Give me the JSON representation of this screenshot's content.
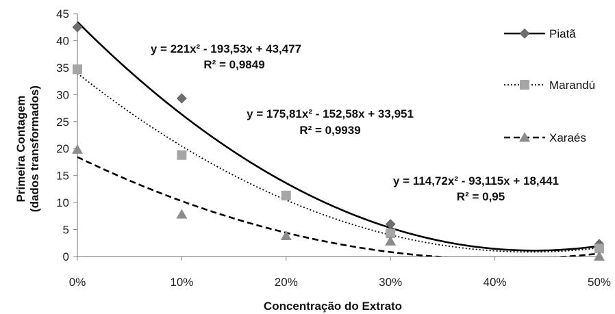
{
  "chart_data": {
    "type": "scatter",
    "xlabel": "Concentração do Extrato",
    "ylabel_lines": [
      "Primeira Contagem",
      "(dados transformados)"
    ],
    "x_ticks": [
      0,
      0.1,
      0.2,
      0.3,
      0.4,
      0.5
    ],
    "x_tick_labels": [
      "0%",
      "10%",
      "20%",
      "30%",
      "40%",
      "50%"
    ],
    "xlim": [
      0,
      0.5
    ],
    "y_ticks": [
      0,
      5,
      10,
      15,
      20,
      25,
      30,
      35,
      40,
      45
    ],
    "y_tick_labels": [
      "0",
      "5",
      "10",
      "15",
      "20",
      "25",
      "30",
      "35",
      "40",
      "45"
    ],
    "ylim": [
      0,
      45
    ],
    "grid": false,
    "legend_position": "right",
    "series": [
      {
        "name": "Piatã",
        "marker": "diamond",
        "marker_color": "#6e6e6e",
        "line_style": "solid",
        "x": [
          0,
          0.1,
          0.3,
          0.5
        ],
        "values": [
          42.5,
          29.3,
          6.0,
          2.3
        ],
        "trend": [
          221,
          -193.53,
          43.477
        ],
        "equation_lines": [
          "y = 221x² - 193,53x + 43,477",
          "R² = 0,9849"
        ]
      },
      {
        "name": "Marandú",
        "marker": "square",
        "marker_color": "#a6a6a6",
        "line_style": "dotted",
        "x": [
          0,
          0.1,
          0.2,
          0.3,
          0.5
        ],
        "values": [
          34.7,
          18.8,
          11.3,
          4.3,
          1.5
        ],
        "trend": [
          175.81,
          -152.58,
          33.951
        ],
        "equation_lines": [
          "y = 175,81x² - 152,58x + 33,951",
          "R² = 0,9939"
        ]
      },
      {
        "name": "Xaraés",
        "marker": "triangle",
        "marker_color": "#8c8c8c",
        "line_style": "dashed",
        "x": [
          0,
          0.1,
          0.2,
          0.3,
          0.5
        ],
        "values": [
          19.8,
          7.8,
          3.8,
          2.8,
          0.0
        ],
        "trend": [
          114.72,
          -93.115,
          18.441
        ],
        "equation_lines": [
          "y = 114,72x² - 93,115x + 18,441",
          "R² = 0,95"
        ]
      }
    ]
  }
}
